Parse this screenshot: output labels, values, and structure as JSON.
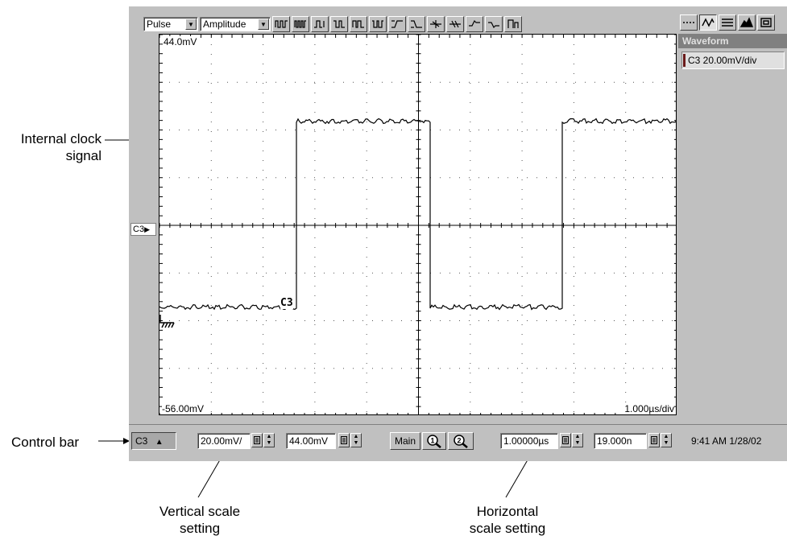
{
  "callouts": {
    "internal_clock": [
      "Internal clock",
      "signal"
    ],
    "control_bar": "Control bar",
    "vertical_scale": [
      "Vertical scale",
      "setting"
    ],
    "horizontal_scale": [
      "Horizontal",
      "scale setting"
    ]
  },
  "toolbar": {
    "measurement_class": "Pulse",
    "measurement_type": "Amplitude",
    "icons": [
      "pulse-freq-icon",
      "pulse-period-icon",
      "pulse-width-pos-icon",
      "pulse-width-neg-icon",
      "burst-width-icon",
      "duty-cycle-icon",
      "rise-time-icon",
      "fall-time-icon",
      "phase-icon",
      "delay-icon",
      "overshoot-icon",
      "undershoot-icon",
      "statistics-icon"
    ],
    "view_icons": [
      "display-dots-icon",
      "display-vectors-icon",
      "display-intensity-icon",
      "histogram-icon",
      "record-view-icon"
    ]
  },
  "display": {
    "top_level": "44.0mV",
    "bottom_level": "-56.00mV",
    "timebase": "1.000µs/div",
    "channel_marker": "C3",
    "waveform_label": "C3"
  },
  "waveform_panel": {
    "title": "Waveform",
    "item": "C3 20.00mV/div"
  },
  "control_bar": {
    "channel": "C3",
    "vertical_scale": "20.00mV/",
    "vertical_offset": "44.00mV",
    "timebase_mode": "Main",
    "horizontal_scale": "1.00000µs",
    "horizontal_position": "19.000n",
    "clock": "9:41 AM 1/28/02"
  },
  "colors": {
    "chrome": "#c0c0c0",
    "graticule": "#ffffff",
    "trace": "#000000"
  }
}
